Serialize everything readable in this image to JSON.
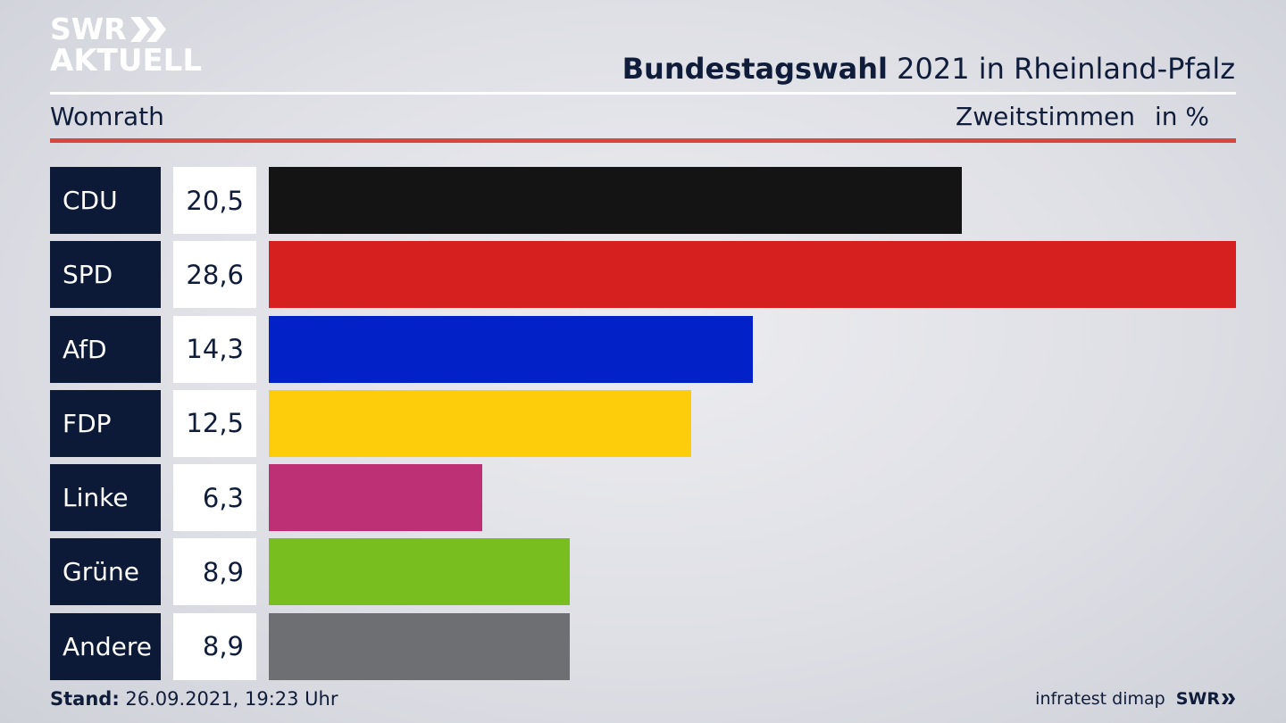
{
  "logo": {
    "line1": "SWR",
    "line2": "AKTUELL"
  },
  "header": {
    "title_bold": "Bundestagswahl",
    "title_rest": " 2021 in Rheinland-Pfalz",
    "location": "Womrath",
    "measure": "Zweitstimmen",
    "unit": "in %"
  },
  "chart_data": {
    "type": "bar",
    "orientation": "horizontal",
    "categories": [
      "CDU",
      "SPD",
      "AfD",
      "FDP",
      "Linke",
      "Grüne",
      "Andere"
    ],
    "values": [
      20.5,
      28.6,
      14.3,
      12.5,
      6.3,
      8.9,
      8.9
    ],
    "labels": [
      "20,5",
      "28,6",
      "14,3",
      "12,5",
      "6,3",
      "8,9",
      "8,9"
    ],
    "colors": [
      "#141414",
      "#d62020",
      "#0222c7",
      "#fdcc0b",
      "#bd3075",
      "#78be1e",
      "#6e6f73"
    ],
    "xlim": [
      0,
      28.6
    ]
  },
  "footer": {
    "stand_label": "Stand:",
    "stand_value": " 26.09.2021, 19:23 Uhr",
    "source": "infratest dimap",
    "brand": "SWR"
  }
}
